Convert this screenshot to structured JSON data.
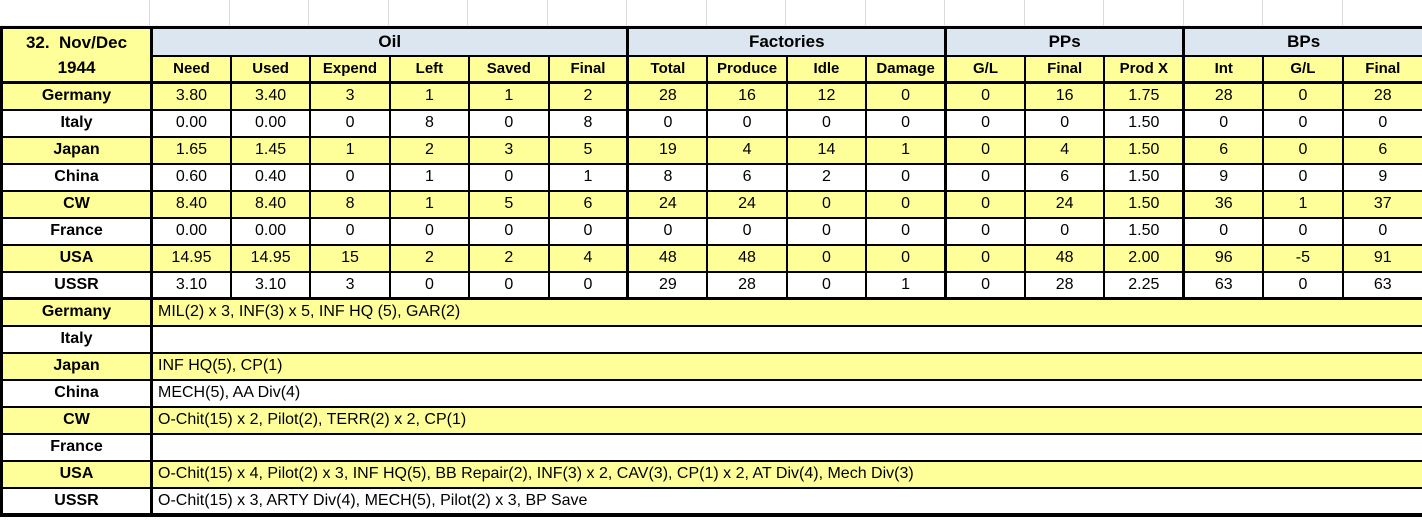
{
  "header": {
    "turn_line1": "32.  Nov/Dec",
    "turn_line2": "1944"
  },
  "colors": {
    "row_highlight_yellow": "#FFFF99",
    "group_header_blue": "#DCE6F1",
    "grid_black": "#000000",
    "faint_gridline_gray": "#D9D9D9"
  },
  "table": {
    "groups": [
      {
        "label": "Oil"
      },
      {
        "label": "Factories"
      },
      {
        "label": "PPs"
      },
      {
        "label": "BPs"
      }
    ],
    "subheaders": [
      "Need",
      "Used",
      "Expend",
      "Left",
      "Saved",
      "Final",
      "Total",
      "Produce",
      "Idle",
      "Damage",
      "G/L",
      "Final",
      "Prod X",
      "Int",
      "G/L",
      "Final"
    ],
    "rows": [
      {
        "country": "Germany",
        "values": [
          "3.80",
          "3.40",
          "3",
          "1",
          "1",
          "2",
          "28",
          "16",
          "12",
          "0",
          "0",
          "16",
          "1.75",
          "28",
          "0",
          "28"
        ]
      },
      {
        "country": "Italy",
        "values": [
          "0.00",
          "0.00",
          "0",
          "8",
          "0",
          "8",
          "0",
          "0",
          "0",
          "0",
          "0",
          "0",
          "1.50",
          "0",
          "0",
          "0"
        ]
      },
      {
        "country": "Japan",
        "values": [
          "1.65",
          "1.45",
          "1",
          "2",
          "3",
          "5",
          "19",
          "4",
          "14",
          "1",
          "0",
          "4",
          "1.50",
          "6",
          "0",
          "6"
        ]
      },
      {
        "country": "China",
        "values": [
          "0.60",
          "0.40",
          "0",
          "1",
          "0",
          "1",
          "8",
          "6",
          "2",
          "0",
          "0",
          "6",
          "1.50",
          "9",
          "0",
          "9"
        ]
      },
      {
        "country": "CW",
        "values": [
          "8.40",
          "8.40",
          "8",
          "1",
          "5",
          "6",
          "24",
          "24",
          "0",
          "0",
          "0",
          "24",
          "1.50",
          "36",
          "1",
          "37"
        ]
      },
      {
        "country": "France",
        "values": [
          "0.00",
          "0.00",
          "0",
          "0",
          "0",
          "0",
          "0",
          "0",
          "0",
          "0",
          "0",
          "0",
          "1.50",
          "0",
          "0",
          "0"
        ]
      },
      {
        "country": "USA",
        "values": [
          "14.95",
          "14.95",
          "15",
          "2",
          "2",
          "4",
          "48",
          "48",
          "0",
          "0",
          "0",
          "48",
          "2.00",
          "96",
          "-5",
          "91"
        ]
      },
      {
        "country": "USSR",
        "values": [
          "3.10",
          "3.10",
          "3",
          "0",
          "0",
          "0",
          "29",
          "28",
          "0",
          "1",
          "0",
          "28",
          "2.25",
          "63",
          "0",
          "63"
        ]
      }
    ],
    "production": [
      {
        "country": "Germany",
        "text": "MIL(2) x 3, INF(3) x 5, INF HQ (5), GAR(2)"
      },
      {
        "country": "Italy",
        "text": ""
      },
      {
        "country": "Japan",
        "text": "INF HQ(5), CP(1)"
      },
      {
        "country": "China",
        "text": "MECH(5), AA Div(4)"
      },
      {
        "country": "CW",
        "text": "O-Chit(15) x 2, Pilot(2), TERR(2) x 2, CP(1)"
      },
      {
        "country": "France",
        "text": ""
      },
      {
        "country": "USA",
        "text": "O-Chit(15) x 4, Pilot(2) x 3, INF HQ(5), BB Repair(2), INF(3) x 2, CAV(3), CP(1) x 2, AT Div(4), Mech Div(3)"
      },
      {
        "country": "USSR",
        "text": "O-Chit(15) x 3, ARTY Div(4), MECH(5), Pilot(2) x 3, BP Save"
      }
    ]
  }
}
